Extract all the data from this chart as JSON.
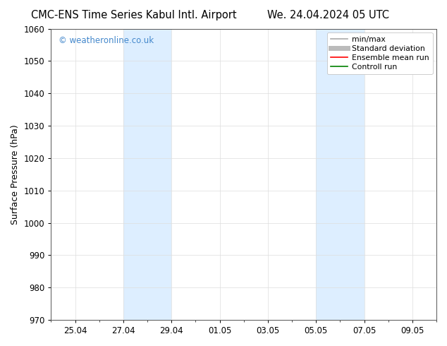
{
  "title_left": "CMC-ENS Time Series Kabul Intl. Airport",
  "title_right": "We. 24.04.2024 05 UTC",
  "ylabel": "Surface Pressure (hPa)",
  "ylim": [
    970,
    1060
  ],
  "yticks": [
    970,
    980,
    990,
    1000,
    1010,
    1020,
    1030,
    1040,
    1050,
    1060
  ],
  "xtick_labels": [
    "25.04",
    "27.04",
    "29.04",
    "01.05",
    "03.05",
    "05.05",
    "07.05",
    "09.05"
  ],
  "xtick_positions": [
    1,
    3,
    5,
    7,
    9,
    11,
    13,
    15
  ],
  "x_minor_positions": [
    0,
    1,
    2,
    3,
    4,
    5,
    6,
    7,
    8,
    9,
    10,
    11,
    12,
    13,
    14,
    15,
    16
  ],
  "xlim": [
    0,
    16
  ],
  "shaded_bands": [
    {
      "x_start": 3,
      "x_end": 5,
      "color": "#ddeeff",
      "alpha": 1.0
    },
    {
      "x_start": 11,
      "x_end": 13,
      "color": "#ddeeff",
      "alpha": 1.0
    }
  ],
  "watermark_text": "© weatheronline.co.uk",
  "watermark_color": "#4488cc",
  "legend_entries": [
    {
      "label": "min/max",
      "color": "#aaaaaa",
      "lw": 1.2,
      "style": "solid"
    },
    {
      "label": "Standard deviation",
      "color": "#bbbbbb",
      "lw": 5,
      "style": "solid"
    },
    {
      "label": "Ensemble mean run",
      "color": "#ff0000",
      "lw": 1.2,
      "style": "solid"
    },
    {
      "label": "Controll run",
      "color": "#008000",
      "lw": 1.2,
      "style": "solid"
    }
  ],
  "bg_color": "#ffffff",
  "grid_color": "#dddddd",
  "title_fontsize": 10.5,
  "ylabel_fontsize": 9,
  "tick_fontsize": 8.5,
  "legend_fontsize": 7.8,
  "watermark_fontsize": 8.5
}
